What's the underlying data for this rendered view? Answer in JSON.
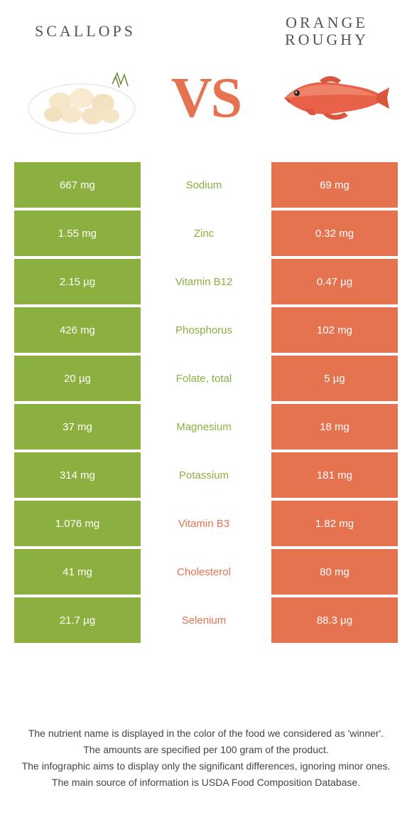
{
  "left_food": {
    "title": "SCALLOPS",
    "color": "#8bb03f"
  },
  "right_food": {
    "title": "ORANGE ROUGHY",
    "color": "#e57350"
  },
  "vs_label": "VS",
  "rows": [
    {
      "left": "667 mg",
      "name": "Sodium",
      "right": "69 mg",
      "winner": "left"
    },
    {
      "left": "1.55 mg",
      "name": "Zinc",
      "right": "0.32 mg",
      "winner": "left"
    },
    {
      "left": "2.15 µg",
      "name": "Vitamin B12",
      "right": "0.47 µg",
      "winner": "left"
    },
    {
      "left": "426 mg",
      "name": "Phosphorus",
      "right": "102 mg",
      "winner": "left"
    },
    {
      "left": "20 µg",
      "name": "Folate, total",
      "right": "5 µg",
      "winner": "left"
    },
    {
      "left": "37 mg",
      "name": "Magnesium",
      "right": "18 mg",
      "winner": "left"
    },
    {
      "left": "314 mg",
      "name": "Potassium",
      "right": "181 mg",
      "winner": "left"
    },
    {
      "left": "1.076 mg",
      "name": "Vitamin B3",
      "right": "1.82 mg",
      "winner": "right"
    },
    {
      "left": "41 mg",
      "name": "Cholesterol",
      "right": "80 mg",
      "winner": "right"
    },
    {
      "left": "21.7 µg",
      "name": "Selenium",
      "right": "88.3 µg",
      "winner": "right"
    }
  ],
  "footer": {
    "l1": "The nutrient name is displayed in the color of the food we considered as 'winner'.",
    "l2": "The amounts are specified per 100 gram of the product.",
    "l3": "The infographic aims to display only the significant differences, ignoring minor ones.",
    "l4": "The main source of information is USDA Food Composition Database."
  }
}
